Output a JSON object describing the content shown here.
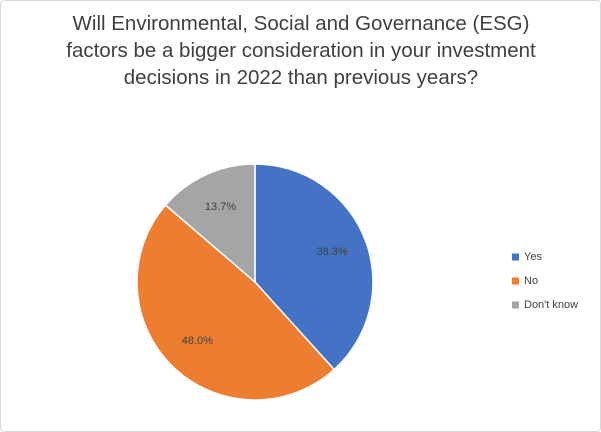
{
  "chart_data": {
    "type": "pie",
    "title": "Will Environmental, Social and Governance (ESG) factors be a bigger consideration in your investment decisions in 2022 than previous years?",
    "categories": [
      "Yes",
      "No",
      "Don't know"
    ],
    "values": [
      38.3,
      48.0,
      13.7
    ],
    "value_labels": [
      "38.3%",
      "48.0%",
      "13.7%"
    ],
    "colors": [
      "#4472c4",
      "#ed7d31",
      "#a5a5a5"
    ],
    "legend": "right"
  }
}
